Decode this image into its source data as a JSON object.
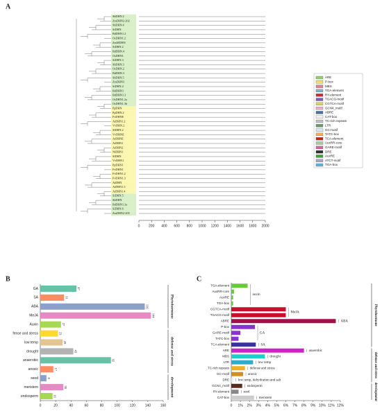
{
  "panel_a": {
    "label": "A",
    "genes": [
      "SbDHN.2",
      "ZmDHN2-202",
      "SbDHN.4",
      "SiDHN",
      "BdDHN1.2",
      "OsDHN1.2",
      "ZmMDHN",
      "SiDHN.2",
      "BdDHN.4",
      "OsDHN1",
      "SiDHN.3",
      "SbDHN.3",
      "OsDHN.2",
      "BdDHN.3",
      "SbDHN.5",
      "ZmDHN3",
      "SiDHN.4",
      "BdDHN1",
      "BdDHN1.3",
      "OsDHN1.2a",
      "OsDHN1.3b",
      "PpDHN",
      "PpDHN.2",
      "FvDHNE",
      "AtDHN1.2",
      "VvDHN.2",
      "SlDHN.2",
      "VvDHNE",
      "AtDHNE",
      "AtDHN1",
      "AtDHN2",
      "NtDHN1",
      "SlDHN",
      "VvDHN1",
      "PpDHN1",
      "FvDHN1",
      "FvDHN1.2",
      "FvDHN1.3",
      "AtDHN",
      "AtDHN1.3",
      "AtDHN1.4",
      "SiDHN.5",
      "SbDHN",
      "BdDHN1.3a",
      "SiDHN.6",
      "ZmDHN2-205"
    ],
    "xlim": [
      0,
      2000
    ],
    "xticks": [
      0,
      200,
      400,
      600,
      800,
      1000,
      1200,
      1400,
      1600,
      1800,
      2000
    ],
    "legend": [
      "ARE",
      "P-box",
      "MBS",
      "TGA-element",
      "RY-element",
      "TGACG-motif",
      "CGTCA-motif",
      "GCN4_motif",
      "ABRE",
      "CAT-box",
      "TC-rich repeats",
      "LTR",
      "GC-motif",
      "TATC-box",
      "TCA-element",
      "AuxRR-core",
      "GARE-motif",
      "DRE",
      "AuxRE",
      "ATCT-motif",
      "TGA-box"
    ],
    "legend_colors": [
      "#8fd16a",
      "#f5e05a",
      "#e87c8a",
      "#7fb0d8",
      "#c03030",
      "#7a5fb0",
      "#d4d46a",
      "#e8b0c0",
      "#4a6fb0",
      "#f0f0f0",
      "#c0c0c0",
      "#6a9a6a",
      "#d0e8f0",
      "#f0b060",
      "#d02020",
      "#a0d0a0",
      "#e060a0",
      "#303030",
      "#40a040",
      "#b0a0d0",
      "#60b0e0"
    ]
  },
  "panel_b": {
    "label": "B",
    "chart_data": {
      "type": "bar",
      "categories": [
        "GA",
        "SA",
        "ABA",
        "MeJA",
        "Auxin",
        "fense and stress",
        "low temp",
        "drought",
        "anaerobic",
        "anoxic",
        "seed",
        "meristem",
        "endosperm"
      ],
      "values": [
        47,
        31,
        136,
        144,
        27,
        23,
        29,
        43,
        92,
        17,
        8,
        30,
        16
      ],
      "colors": [
        "#66c2a5",
        "#fc8d62",
        "#8da0cb",
        "#e78ac3",
        "#a6d854",
        "#ffd92f",
        "#e5c494",
        "#b3b3b3",
        "#66c2a5",
        "#fc8d62",
        "#8da0cb",
        "#e78ac3",
        "#a6d854"
      ],
      "xlim": [
        0,
        160
      ],
      "xticks": [
        0,
        20,
        40,
        60,
        80,
        100,
        120,
        140,
        160
      ],
      "groups": [
        {
          "name": "Phytohormone",
          "from": "GA",
          "to": "Auxin"
        },
        {
          "name": "defense and stress",
          "from": "fense and stress",
          "to": "anoxic"
        },
        {
          "name": "development",
          "from": "seed",
          "to": "endosperm"
        }
      ]
    }
  },
  "panel_c": {
    "label": "C",
    "chart_data": {
      "type": "bar",
      "categories": [
        "TGA-element",
        "AuxRR-core",
        "AuxRE",
        "TGA-box",
        "CGTCA-motif",
        "TGACG-motif",
        "ABRE",
        "P-box",
        "GARE-motif",
        "TATC-box",
        "TCA-element",
        "ARE",
        "MBS",
        "LTR",
        "TC-rich repeats",
        "GC-motif",
        "DRE",
        "GCN4_motif",
        "RY-element",
        "CAT-box"
      ],
      "values": [
        1.8,
        0.3,
        0.2,
        0.2,
        6.0,
        6.0,
        11.5,
        2.6,
        1.0,
        0.8,
        2.7,
        8.0,
        3.7,
        2.4,
        1.5,
        1.3,
        0.2,
        1.2,
        0.8,
        2.5
      ],
      "colors": [
        "#66cc33",
        "#66cc33",
        "#66cc33",
        "#66cc33",
        "#c8102e",
        "#c8102e",
        "#a0104a",
        "#8e2fd0",
        "#8e2fd0",
        "#8e2fd0",
        "#3b2fa8",
        "#cc22cc",
        "#22cccc",
        "#33aacc",
        "#f0b020",
        "#d09020",
        "#eeeeee",
        "#5a2a1a",
        "#888888",
        "#cccccc"
      ],
      "xlim": [
        0,
        12
      ],
      "xticks": [
        0,
        {
          "value": 1,
          "label": "1%"
        },
        {
          "value": 2,
          "label": "2%"
        },
        {
          "value": 3,
          "label": "3%"
        },
        {
          "value": 4,
          "label": "4%"
        },
        {
          "value": 5,
          "label": "5%"
        },
        {
          "value": 6,
          "label": "6%"
        },
        {
          "value": 7,
          "label": "7%"
        },
        {
          "value": 8,
          "label": "8%"
        },
        {
          "value": 9,
          "label": "9%"
        },
        {
          "value": 10,
          "label": "10%"
        },
        {
          "value": 11,
          "label": "11%"
        },
        {
          "value": 12,
          "label": "12%"
        }
      ],
      "annotations": [
        {
          "text": "auxin",
          "from": "TGA-element",
          "to": "TGA-box"
        },
        {
          "text": "MeJA",
          "from": "CGTCA-motif",
          "to": "TGACG-motif"
        },
        {
          "text": "ABA",
          "from": "ABRE",
          "to": "ABRE"
        },
        {
          "text": "GA",
          "from": "P-box",
          "to": "TATC-box"
        },
        {
          "text": "SA",
          "from": "TCA-element",
          "to": "TCA-element"
        },
        {
          "text": "anaerobic",
          "from": "ARE",
          "to": "ARE"
        },
        {
          "text": "drought",
          "from": "MBS",
          "to": "MBS"
        },
        {
          "text": "low temp",
          "from": "LTR",
          "to": "LTR"
        },
        {
          "text": "defense and stress",
          "from": "TC-rich repeats",
          "to": "TC-rich repeats"
        },
        {
          "text": "anoxic",
          "from": "GC-motif",
          "to": "GC-motif"
        },
        {
          "text": "low temp, dehydration and salt",
          "from": "DRE",
          "to": "DRE"
        },
        {
          "text": "endosperm",
          "from": "GCN4_motif",
          "to": "GCN4_motif"
        },
        {
          "text": "seed",
          "from": "RY-element",
          "to": "RY-element"
        },
        {
          "text": "meristem",
          "from": "CAT-box",
          "to": "CAT-box"
        }
      ],
      "groups": [
        {
          "name": "Phytohormone",
          "from": "TGA-element",
          "to": "TCA-element"
        },
        {
          "name": "defense and stress",
          "from": "ARE",
          "to": "DRE"
        },
        {
          "name": "development",
          "from": "GCN4_motif",
          "to": "CAT-box"
        }
      ]
    }
  }
}
